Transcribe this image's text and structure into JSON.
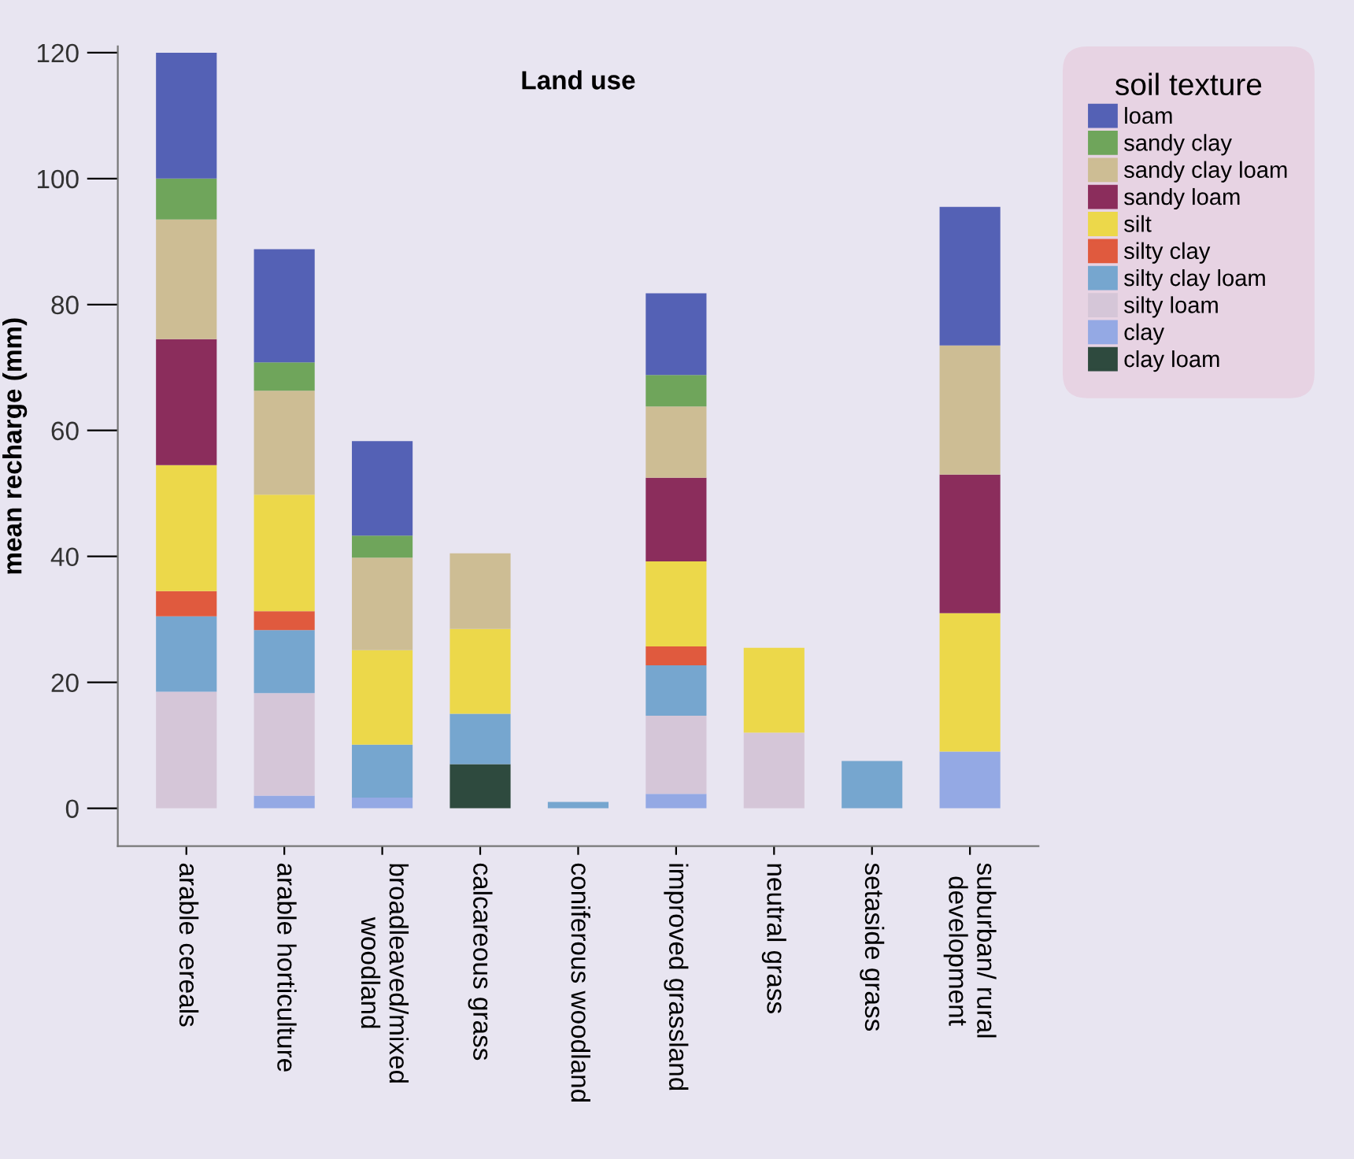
{
  "chart_data": {
    "type": "bar",
    "stacked": true,
    "title": "Land use",
    "ylabel": "mean recharge (mm)",
    "legend_title": "soil texture",
    "legend": "right",
    "grid": false,
    "categories": [
      "arable cereals",
      "arable horticulture",
      "broadleaved/mixed\nwoodland",
      "calcareous grass",
      "coniferous woodland",
      "improved grassland",
      "neutral grass",
      "setaside grass",
      "suburban/ rural\ndevelopment"
    ],
    "ylim": [
      -6,
      121
    ],
    "yticks": [
      0,
      20,
      40,
      60,
      80,
      100,
      120
    ],
    "series": [
      {
        "name": "clay loam",
        "color": "#2e4a3e",
        "values": [
          null,
          null,
          null,
          7,
          null,
          null,
          null,
          null,
          null
        ]
      },
      {
        "name": "clay",
        "color": "#94a9e4",
        "values": [
          null,
          2,
          1.7,
          null,
          null,
          2.3,
          null,
          null,
          9
        ]
      },
      {
        "name": "silty loam",
        "color": "#d5c6d8",
        "values": [
          18.5,
          16.3,
          null,
          null,
          null,
          12.4,
          12,
          null,
          null
        ]
      },
      {
        "name": "silty clay loam",
        "color": "#76a6cf",
        "values": [
          12,
          10,
          8.4,
          8,
          1,
          8,
          null,
          7.5,
          null
        ]
      },
      {
        "name": "silty clay",
        "color": "#e05a3e",
        "values": [
          4,
          3,
          null,
          null,
          null,
          3,
          null,
          null,
          null
        ]
      },
      {
        "name": "silt",
        "color": "#ecd84a",
        "values": [
          20,
          18.5,
          15,
          13.5,
          null,
          13.5,
          13.5,
          null,
          22
        ]
      },
      {
        "name": "sandy loam",
        "color": "#8b2d5c",
        "values": [
          20,
          null,
          null,
          null,
          null,
          13.3,
          null,
          null,
          22
        ]
      },
      {
        "name": "sandy clay loam",
        "color": "#cdbd94",
        "values": [
          19,
          16.5,
          14.7,
          12,
          null,
          11.3,
          null,
          null,
          20.5
        ]
      },
      {
        "name": "sandy clay",
        "color": "#6fa55b",
        "values": [
          6.5,
          4.5,
          3.5,
          null,
          null,
          5,
          null,
          null,
          null
        ]
      },
      {
        "name": "loam",
        "color": "#5461b5",
        "values": [
          20,
          18,
          15,
          null,
          null,
          13,
          null,
          null,
          22
        ]
      }
    ]
  }
}
